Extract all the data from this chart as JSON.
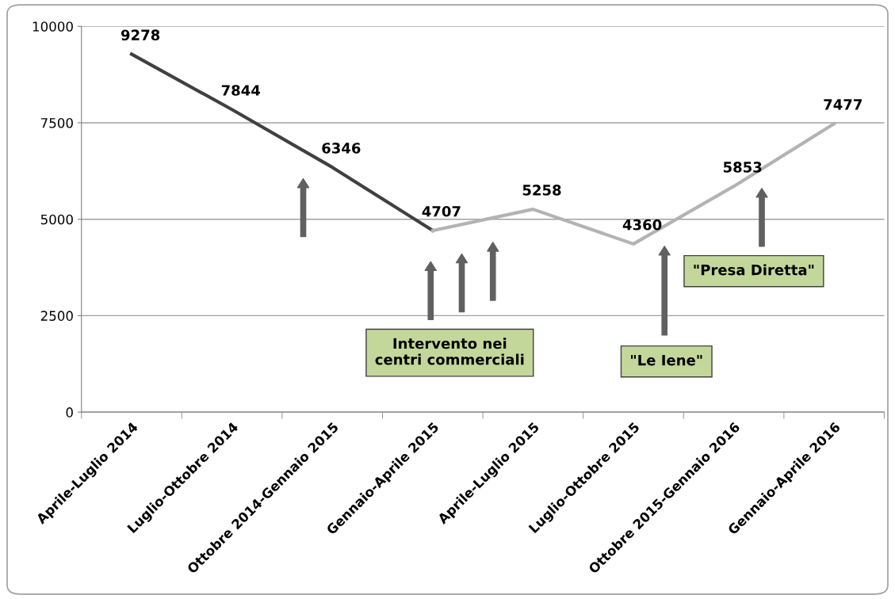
{
  "chart_data": {
    "type": "line",
    "categories": [
      "Aprile-Luglio 2014",
      "Luglio-Ottobre 2014",
      "Ottobre 2014-Gennaio 2015",
      "Gennaio-Aprile 2015",
      "Aprile-Luglio 2015",
      "Luglio-Ottobre 2015",
      "Ottobre 2015-Gennaio 2016",
      "Gennaio-Aprile 2016"
    ],
    "series": [
      {
        "color": "#404040",
        "values": [
          9278,
          7844,
          6346,
          4707,
          null,
          null,
          null,
          null
        ],
        "value_labels": [
          "9278",
          "7844",
          "6346",
          "4707",
          null,
          null,
          null,
          null
        ]
      },
      {
        "color": "#b3b3b3",
        "values": [
          null,
          null,
          null,
          4707,
          5258,
          4360,
          5853,
          7477
        ],
        "value_labels": [
          null,
          null,
          null,
          null,
          "5258",
          "4360",
          "5853",
          "7477"
        ]
      }
    ],
    "ylim": [
      0,
      10000
    ],
    "yticks": [
      0,
      2500,
      5000,
      7500,
      10000
    ],
    "grid": "y",
    "annotations": [
      "Intervento nei\ncentri commerciali",
      "\"Le Iene\"",
      "\"Presa Diretta\""
    ]
  }
}
